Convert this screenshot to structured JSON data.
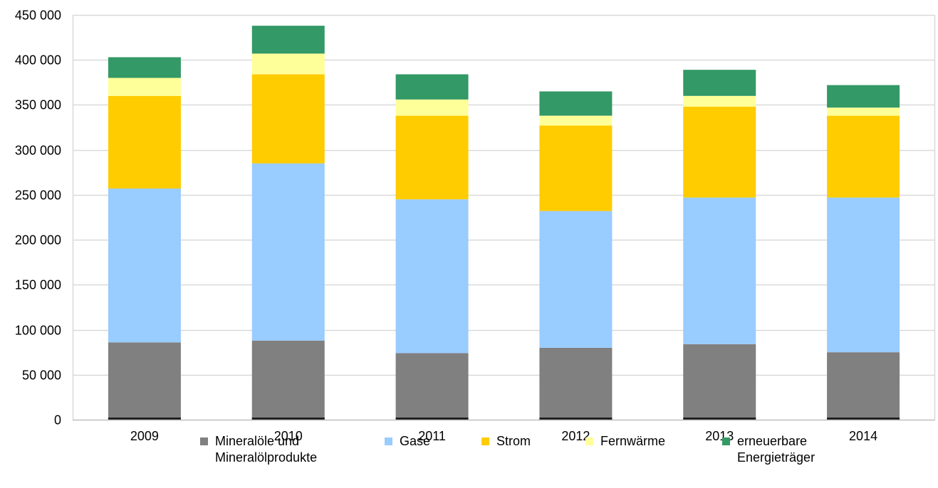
{
  "chart_data": {
    "type": "bar",
    "stacked": true,
    "categories": [
      "2009",
      "2010",
      "2011",
      "2012",
      "2013",
      "2014"
    ],
    "ylim": [
      0,
      450000
    ],
    "yticks": [
      "0",
      "50 000",
      "100 000",
      "150 000",
      "200 000",
      "250 000",
      "300 000",
      "350 000",
      "400 000",
      "450 000"
    ],
    "ytick_values": [
      0,
      50000,
      100000,
      150000,
      200000,
      250000,
      300000,
      350000,
      400000,
      450000
    ],
    "grid": true,
    "legend_position": "bottom",
    "series": [
      {
        "name": "Mineralöle und Mineralölprodukte",
        "name_lines": [
          "Mineralöle und",
          "Mineralölprodukte"
        ],
        "color": "#808080",
        "values": [
          86000,
          88000,
          74000,
          80000,
          84000,
          75000
        ]
      },
      {
        "name": "Gase",
        "name_lines": [
          "Gase"
        ],
        "color": "#99ccff",
        "values": [
          171000,
          197000,
          171000,
          152000,
          163000,
          172000
        ]
      },
      {
        "name": "Strom",
        "name_lines": [
          "Strom"
        ],
        "color": "#ffcc00",
        "values": [
          103000,
          99000,
          93000,
          95000,
          101000,
          91000
        ]
      },
      {
        "name": "Fernwärme",
        "name_lines": [
          "Fernwärme"
        ],
        "color": "#ffff99",
        "values": [
          20000,
          23000,
          18000,
          11000,
          12000,
          9000
        ]
      },
      {
        "name": "erneuerbare Energieträger",
        "name_lines": [
          "erneuerbare",
          "Energieträger"
        ],
        "color": "#339966",
        "values": [
          23000,
          31000,
          28000,
          27000,
          29000,
          25000
        ]
      }
    ]
  }
}
